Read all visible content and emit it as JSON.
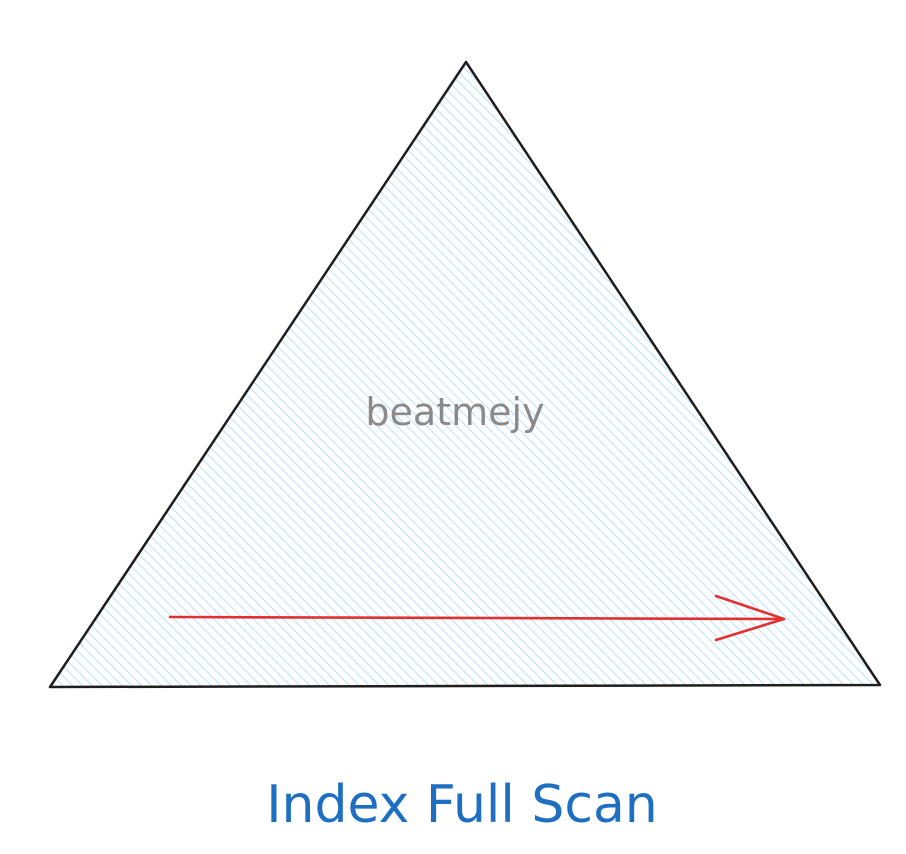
{
  "diagram": {
    "watermark_text": "beatmejy",
    "caption": "Index Full Scan",
    "colors": {
      "triangle_fill_hatch": "#a5d8ff",
      "triangle_stroke": "#1e1e1e",
      "scan_arrow": "#e03131",
      "watermark": "#8a8a8a",
      "caption": "#1e6fc2"
    }
  }
}
